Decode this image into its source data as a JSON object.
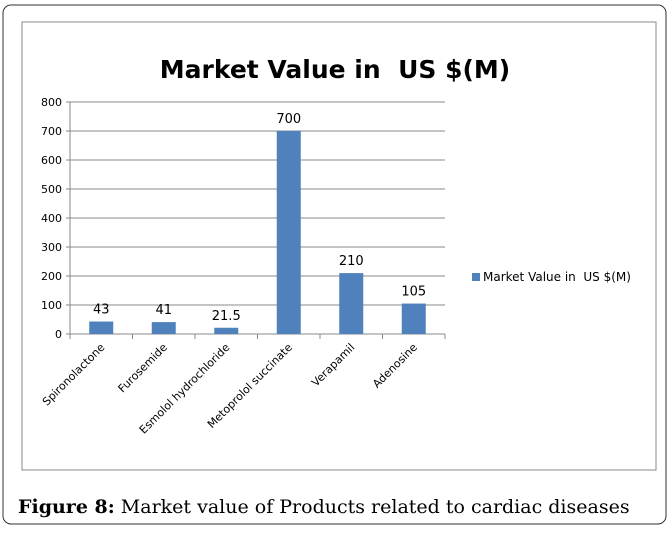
{
  "chart_data": {
    "type": "bar",
    "title": "Market Value in  US $(M)",
    "categories": [
      "Spironolactone",
      "Furosemide",
      "Esmolol hydrochloride",
      "Metoprolol succinate",
      "Verapamil",
      "Adenosine"
    ],
    "series": [
      {
        "name": "Market Value in  US $(M)",
        "color": "#4f81bd",
        "values": [
          43,
          41,
          21.5,
          700,
          210,
          105
        ]
      }
    ],
    "ylim": [
      0,
      800
    ],
    "yticks": [
      0,
      100,
      200,
      300,
      400,
      500,
      600,
      700,
      800
    ],
    "grid": true,
    "legend": "right"
  },
  "caption": {
    "label": "Figure 8:",
    "text": " Market value of Products related to cardiac diseases"
  }
}
